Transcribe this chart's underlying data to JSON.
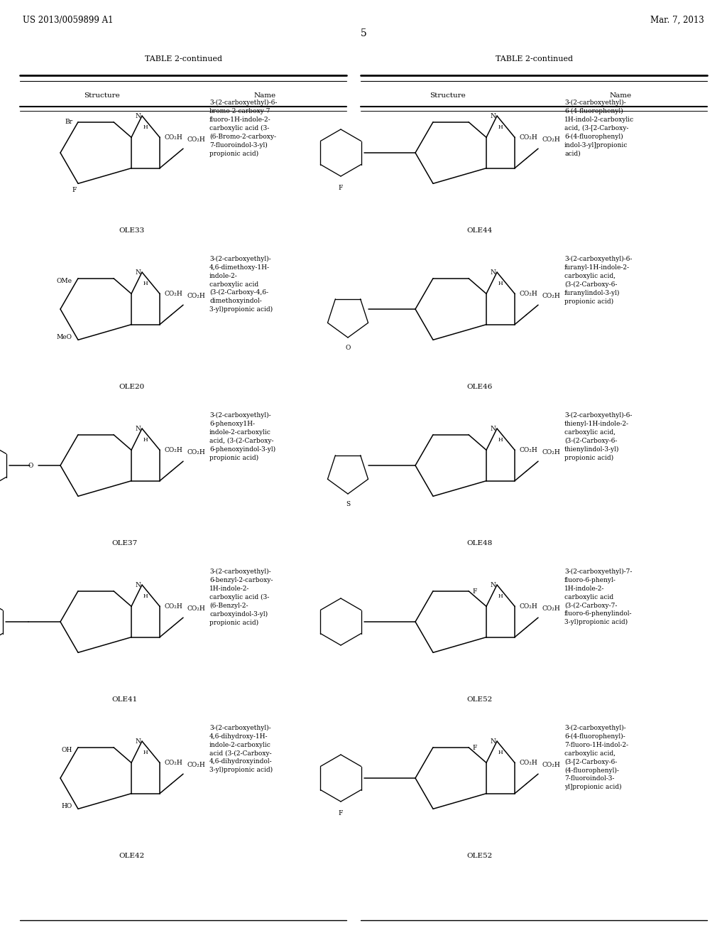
{
  "bg_color": "#ffffff",
  "page_width": 10.24,
  "page_height": 13.2,
  "header_left": "US 2013/0059899 A1",
  "header_right": "Mar. 7, 2013",
  "page_number": "5",
  "table_title": "TABLE 2-continued",
  "left_entries": [
    {
      "id": "OLE33",
      "name": "3-(2-carboxyethyl)-6-\nbromo-2-carboxy-7-\nfluoro-1H-indole-2-\ncarboxylic acid (3-\n(6-Bromo-2-carboxy-\n7-fluoroindol-3-yl)\npropionic acid)"
    },
    {
      "id": "OLE20",
      "name": "3-(2-carboxyethyl)-\n4,6-dimethoxy-1H-\nindole-2-\ncarboxylic acid\n(3-(2-Carboxy-4,6-\ndimethoxyindol-\n3-yl)propionic acid)"
    },
    {
      "id": "OLE37",
      "name": "3-(2-carboxyethyl)-\n6-phenoxy1H-\nindole-2-carboxylic\nacid, (3-(2-Carboxy-\n6-phenoxyindol-3-yl)\npropionic acid)"
    },
    {
      "id": "OLE41",
      "name": "3-(2-carboxyethyl)-\n6-benzyl-2-carboxy-\n1H-indole-2-\ncarboxylic acid (3-\n(6-Benzyl-2-\ncarboxyindol-3-yl)\npropionic acid)"
    },
    {
      "id": "OLE42",
      "name": "3-(2-carboxyethyl)-\n4,6-dihydroxy-1H-\nindole-2-carboxylic\nacid (3-(2-Carboxy-\n4,6-dihydroxyindol-\n3-yl)propionic acid)"
    }
  ],
  "right_entries": [
    {
      "id": "OLE44",
      "name": "3-(2-carboxyethyl)-\n6-(4-fluorophenyl)-\n1H-indol-2-carboxylic\nacid, (3-[2-Carboxy-\n6-(4-fluorophenyl)\nindol-3-yl]propionic\nacid)"
    },
    {
      "id": "OLE46",
      "name": "3-(2-carboxyethyl)-6-\nfuranyl-1H-indole-2-\ncarboxylic acid,\n(3-(2-Carboxy-6-\nfuranylindol-3-yl)\npropionic acid)"
    },
    {
      "id": "OLE48",
      "name": "3-(2-carboxyethyl)-6-\nthienyl-1H-indole-2-\ncarboxylic acid,\n(3-(2-Carboxy-6-\nthienylindol-3-yl)\npropionic acid)"
    },
    {
      "id": "OLE52",
      "name": "3-(2-carboxyethyl)-7-\nfluoro-6-phenyl-\n1H-indole-2-\ncarboxylic acid\n(3-(2-Carboxy-7-\nfluoro-6-phenylindol-\n3-yl)propionic acid)"
    },
    {
      "id": "OLE52",
      "name": "3-(2-carboxyethyl)-\n6-(4-fluorophenyl)-\n7-fluoro-1H-indol-2-\ncarboxylic acid,\n(3-[2-Carboxy-6-\n(4-fluorophenyl)-\n7-fluoroindol-3-\nyl]propionic acid)"
    }
  ]
}
